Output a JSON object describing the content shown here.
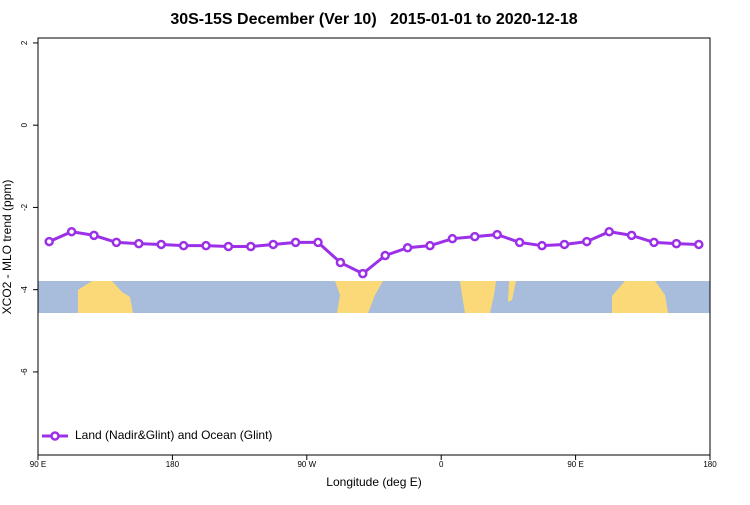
{
  "chart_data": {
    "type": "line",
    "title": "30S-15S December (Ver 10)   2015-01-01 to 2020-12-18",
    "x_label": "Longitude (deg E)",
    "y_label": "XCO2 - MLO trend (ppm)",
    "x": [
      97.5,
      112.5,
      127.5,
      142.5,
      157.5,
      172.5,
      187.5,
      202.5,
      217.5,
      232.5,
      247.5,
      262.5,
      277.5,
      292.5,
      307.5,
      322.5,
      337.5,
      352.5,
      367.5,
      382.5,
      397.5,
      412.5,
      427.5,
      442.5,
      457.5,
      472.5,
      487.5,
      502.5,
      517.5,
      532.5
    ],
    "series": [
      {
        "name": "Land (Nadir&Glint) and Ocean (Glint)",
        "color": "#9b30e8",
        "values": [
          -2.83,
          -2.59,
          -2.68,
          -2.85,
          -2.88,
          -2.9,
          -2.93,
          -2.93,
          -2.95,
          -2.95,
          -2.9,
          -2.85,
          -2.85,
          -3.34,
          -3.61,
          -3.17,
          -2.98,
          -2.93,
          -2.76,
          -2.71,
          -2.66,
          -2.85,
          -2.93,
          -2.9,
          -2.83,
          -2.59,
          -2.68,
          -2.85,
          -2.88,
          -2.9
        ]
      }
    ],
    "xlim": [
      90,
      540
    ],
    "xticks": [
      {
        "value": 90,
        "label": "90 E"
      },
      180,
      {
        "value": 270,
        "label": "90 W"
      },
      {
        "value": 360,
        "label": "0"
      },
      {
        "value": 450,
        "label": "90 E"
      },
      {
        "value": 540,
        "label": "180"
      }
    ],
    "ylim": [
      -8.02,
      2.12
    ],
    "yticks": [
      2,
      0,
      -2,
      -4,
      -6
    ],
    "legend": "bottom-left"
  }
}
